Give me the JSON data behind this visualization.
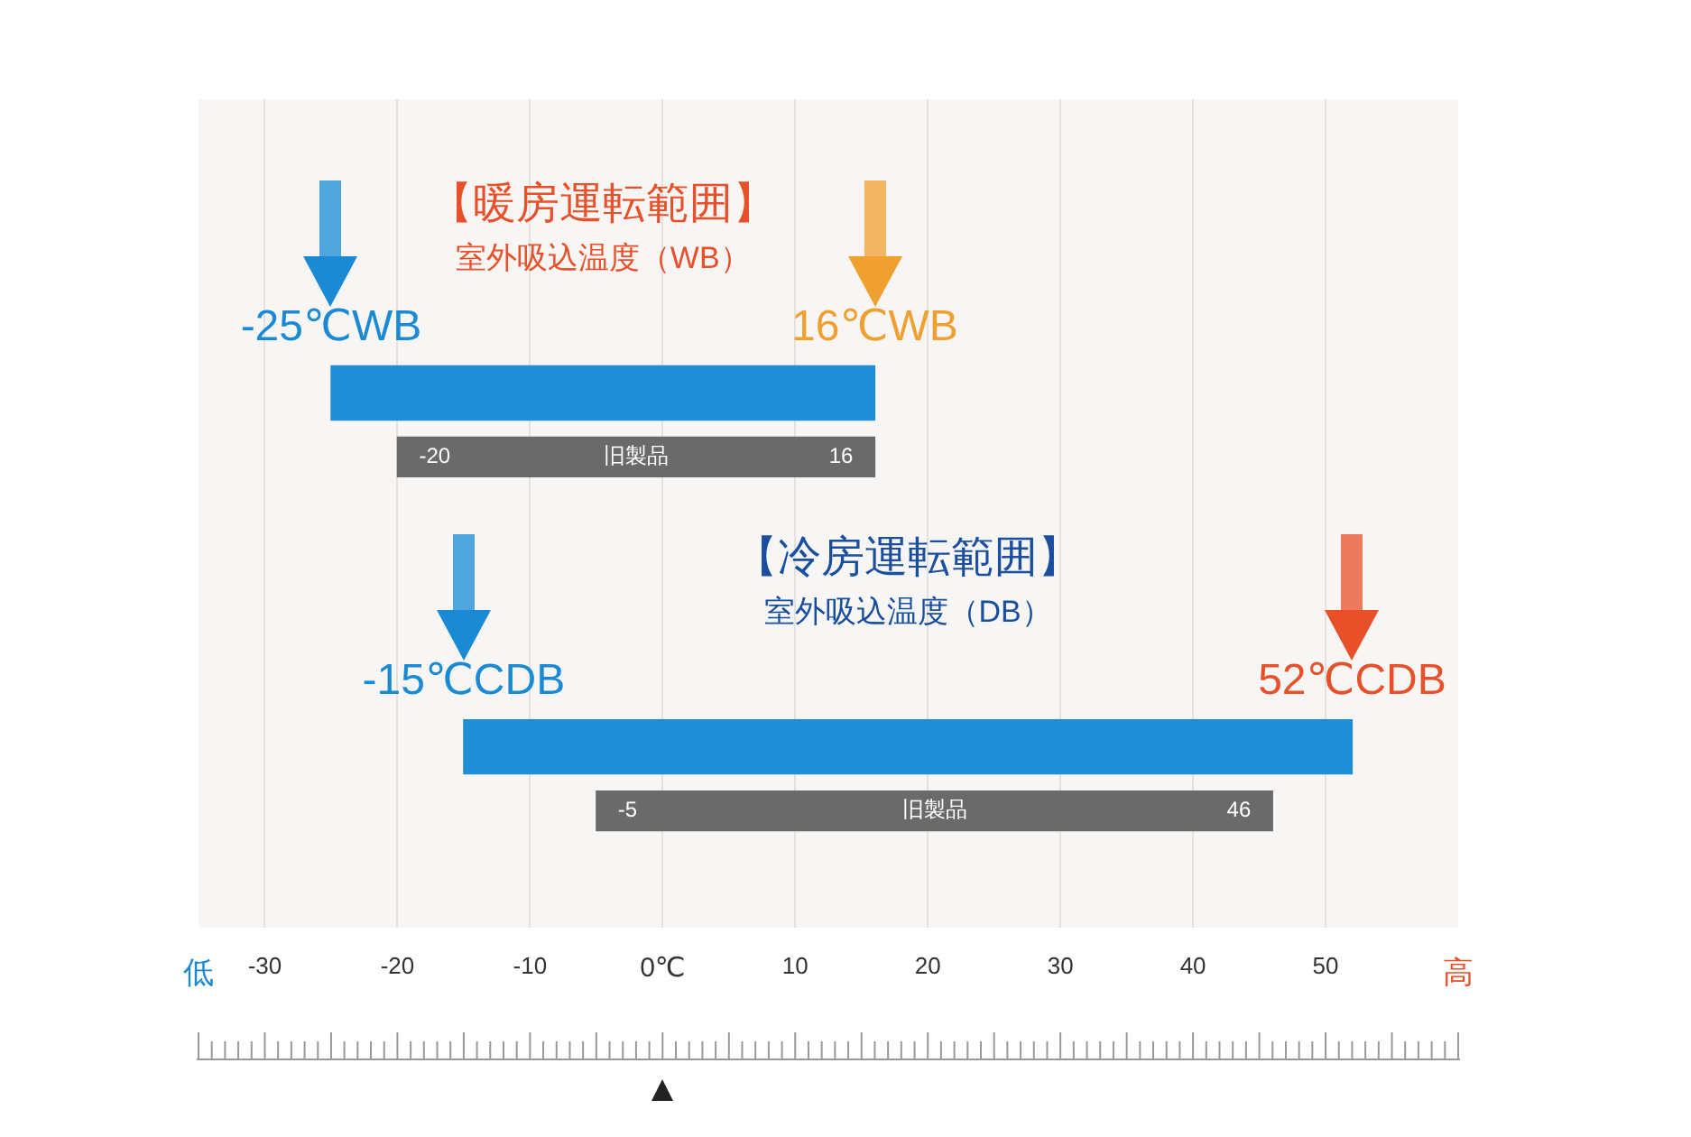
{
  "chart_data": {
    "type": "bar",
    "orientation": "horizontal",
    "categories": [
      "【暖房運転範囲】",
      "【冷房運転範囲】"
    ],
    "series": [
      {
        "color": "#1e8fd6",
        "values": [
          41,
          67
        ],
        "base": [
          -25,
          -15
        ]
      },
      {
        "name": "旧製品",
        "color": "#6a6a6a",
        "values": [
          36,
          51
        ],
        "base": [
          -20,
          -5
        ]
      }
    ],
    "xlim": [
      -35,
      60
    ],
    "xticks": [
      -30,
      -20,
      -10,
      {
        "value": 0,
        "label": "0℃"
      },
      10,
      20,
      30,
      40,
      50
    ],
    "grid": "x",
    "legend": false,
    "annotations": [
      "室外吸込温度（WB）",
      "室外吸込温度（DB）",
      "-25℃WB",
      "16℃WB",
      "-20",
      "16",
      "-15℃CDB",
      "52℃CDB",
      "-5",
      "46",
      "低",
      "高"
    ]
  }
}
